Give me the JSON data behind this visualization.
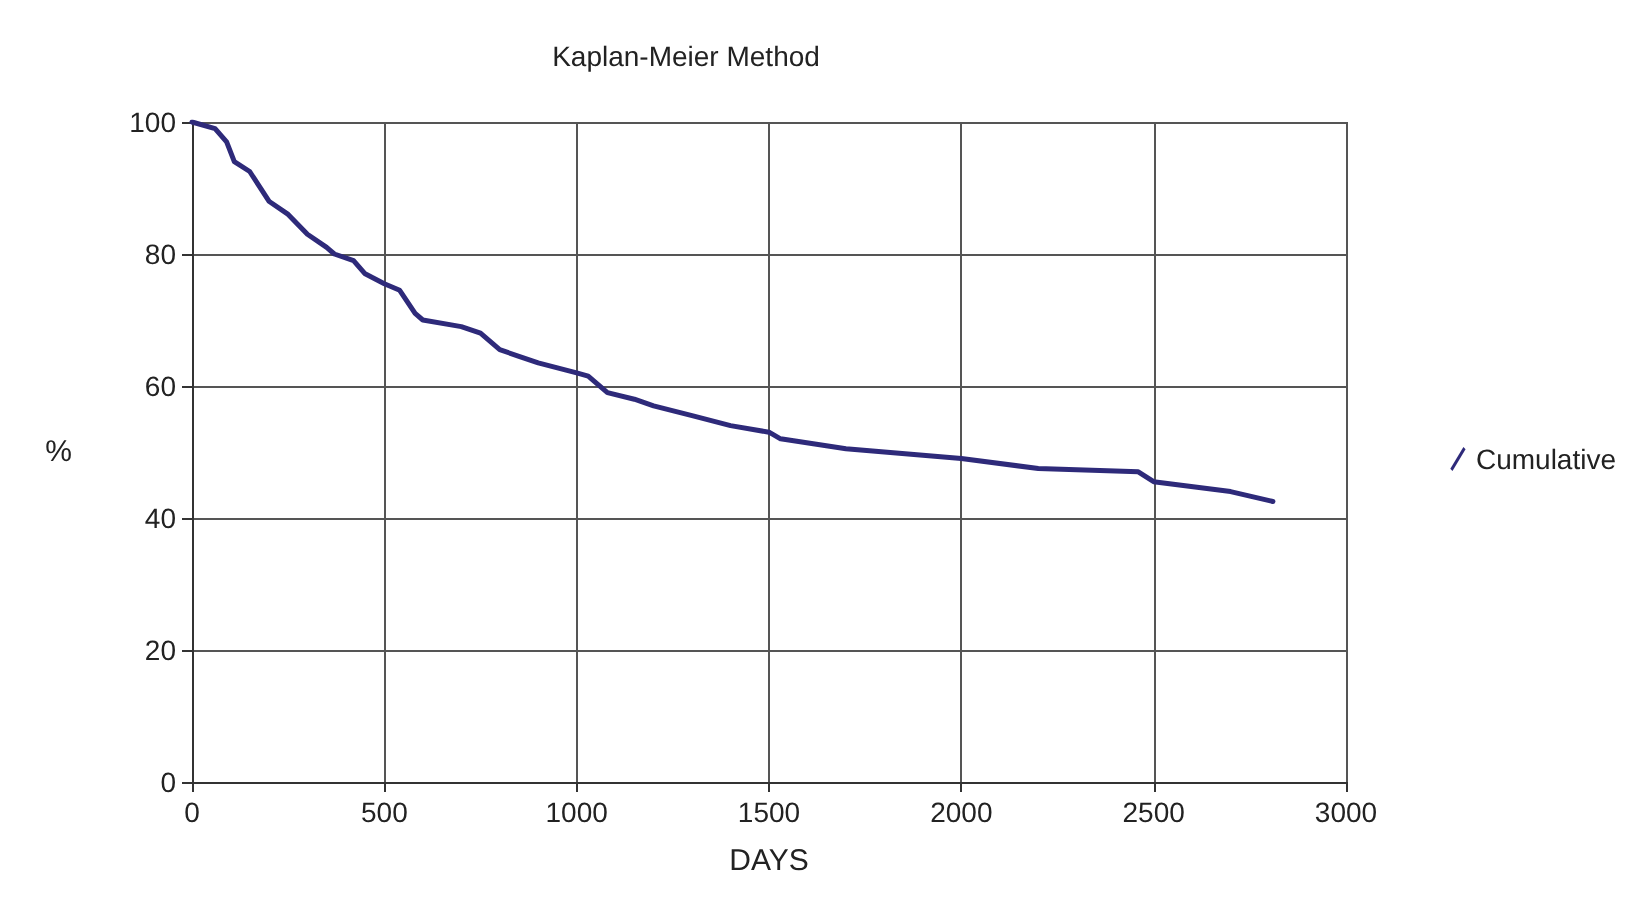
{
  "chart_data": {
    "type": "line",
    "title": "Kaplan-Meier Method",
    "xlabel": "DAYS",
    "ylabel": "%",
    "x": [
      0,
      60,
      90,
      110,
      150,
      200,
      250,
      300,
      350,
      370,
      420,
      450,
      500,
      540,
      580,
      600,
      700,
      750,
      800,
      850,
      900,
      1000,
      1030,
      1080,
      1150,
      1200,
      1300,
      1400,
      1500,
      1530,
      1700,
      1900,
      2000,
      2200,
      2460,
      2500,
      2700,
      2810
    ],
    "series": [
      {
        "name": "Cumulative",
        "color": "#2e2a7a",
        "values": [
          100,
          99,
          97,
          94,
          92.5,
          88,
          86,
          83,
          81,
          80,
          79,
          77,
          75.5,
          74.5,
          71,
          70,
          69,
          68,
          65.5,
          64.5,
          63.5,
          62,
          61.5,
          59,
          58,
          57,
          55.5,
          54,
          53,
          52,
          50.5,
          49.5,
          49,
          47.5,
          47,
          45.5,
          44,
          42.5
        ]
      }
    ],
    "xlim": [
      0,
      3000
    ],
    "xticks": [
      0,
      500,
      1000,
      1500,
      2000,
      2500,
      3000
    ],
    "ylim": [
      0,
      100
    ],
    "yticks": [
      0,
      20,
      40,
      60,
      80,
      100
    ],
    "grid": true,
    "legend": "right",
    "marker": "none",
    "line_style": "solid"
  }
}
